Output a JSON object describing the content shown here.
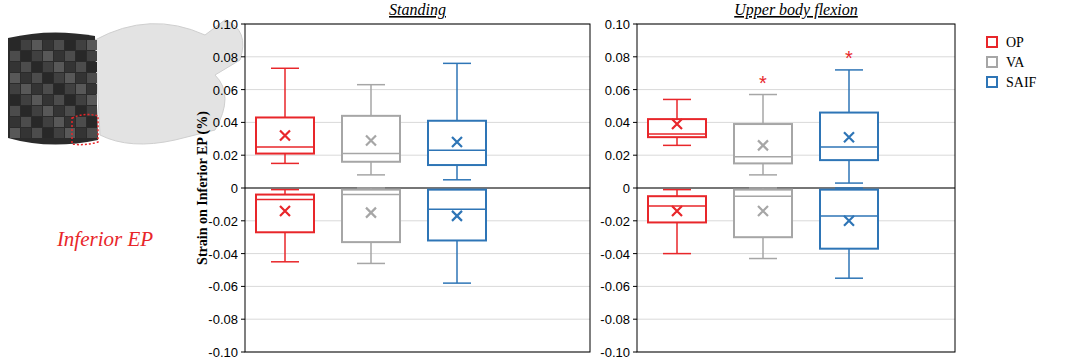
{
  "chart_data": [
    {
      "type": "box",
      "title": "Standing",
      "y_label": "Strain on Inferior EP (%)",
      "annotations": [
        {
          "text": "Inferior EP"
        }
      ],
      "ylim": [
        -0.1,
        0.1
      ],
      "yticks": [
        {
          "value": 0.1,
          "label": "0.10"
        },
        0.08,
        0.06,
        0.04,
        0.02,
        0,
        -0.02,
        -0.04,
        -0.06,
        -0.08,
        {
          "value": -0.1,
          "label": "-0.10"
        }
      ],
      "grid": true,
      "tick_labels": "y",
      "series": [
        {
          "name": "OP",
          "color": "#e8262a",
          "positive": {
            "min": 0.015,
            "q1": 0.021,
            "median": 0.025,
            "q3": 0.043,
            "max": 0.073,
            "mean": 0.032
          },
          "negative": {
            "min": -0.045,
            "q1": -0.027,
            "median": -0.007,
            "q3": -0.004,
            "max": -0.001,
            "mean": -0.014
          }
        },
        {
          "name": "VA",
          "color": "#a6a6a6",
          "positive": {
            "min": 0.008,
            "q1": 0.016,
            "median": 0.021,
            "q3": 0.044,
            "max": 0.063,
            "mean": 0.029
          },
          "negative": {
            "min": -0.046,
            "q1": -0.033,
            "median": -0.004,
            "q3": -0.001,
            "max": 0,
            "mean": -0.015
          }
        },
        {
          "name": "SAIF",
          "color": "#2e75b6",
          "positive": {
            "min": 0.005,
            "q1": 0.014,
            "median": 0.023,
            "q3": 0.041,
            "max": 0.076,
            "mean": 0.028
          },
          "negative": {
            "min": -0.058,
            "q1": -0.032,
            "median": -0.013,
            "q3": -0.001,
            "max": -0.001,
            "mean": -0.017
          }
        }
      ]
    },
    {
      "type": "box",
      "title": "Upper body flexion",
      "ylim": [
        -0.1,
        0.1
      ],
      "yticks": [
        {
          "value": 0.1,
          "label": "0.10"
        },
        0.08,
        0.06,
        0.04,
        0.02,
        0,
        -0.02,
        -0.04,
        -0.06,
        -0.08,
        {
          "value": -0.1,
          "label": "-0.10"
        }
      ],
      "grid": true,
      "tick_labels": "y",
      "legend": "right",
      "annotations": [
        {
          "text": "*",
          "series": 1,
          "value": 0.066
        },
        {
          "text": "*",
          "series": 2,
          "value": 0.081
        }
      ],
      "series": [
        {
          "name": "OP",
          "color": "#e8262a",
          "positive": {
            "min": 0.026,
            "q1": 0.031,
            "median": 0.033,
            "q3": 0.042,
            "max": 0.054,
            "mean": 0.039
          },
          "negative": {
            "min": -0.04,
            "q1": -0.021,
            "median": -0.011,
            "q3": -0.005,
            "max": -0.001,
            "mean": -0.014
          }
        },
        {
          "name": "VA",
          "color": "#a6a6a6",
          "positive": {
            "min": 0.008,
            "q1": 0.015,
            "median": 0.019,
            "q3": 0.039,
            "max": 0.057,
            "mean": 0.026
          },
          "negative": {
            "min": -0.043,
            "q1": -0.03,
            "median": -0.005,
            "q3": -0.001,
            "max": 0,
            "mean": -0.014
          }
        },
        {
          "name": "SAIF",
          "color": "#2e75b6",
          "positive": {
            "min": 0.003,
            "q1": 0.017,
            "median": 0.025,
            "q3": 0.046,
            "max": 0.072,
            "mean": 0.031
          },
          "negative": {
            "min": -0.055,
            "q1": -0.037,
            "median": -0.017,
            "q3": -0.001,
            "max": 0,
            "mean": -0.02
          }
        }
      ]
    }
  ]
}
